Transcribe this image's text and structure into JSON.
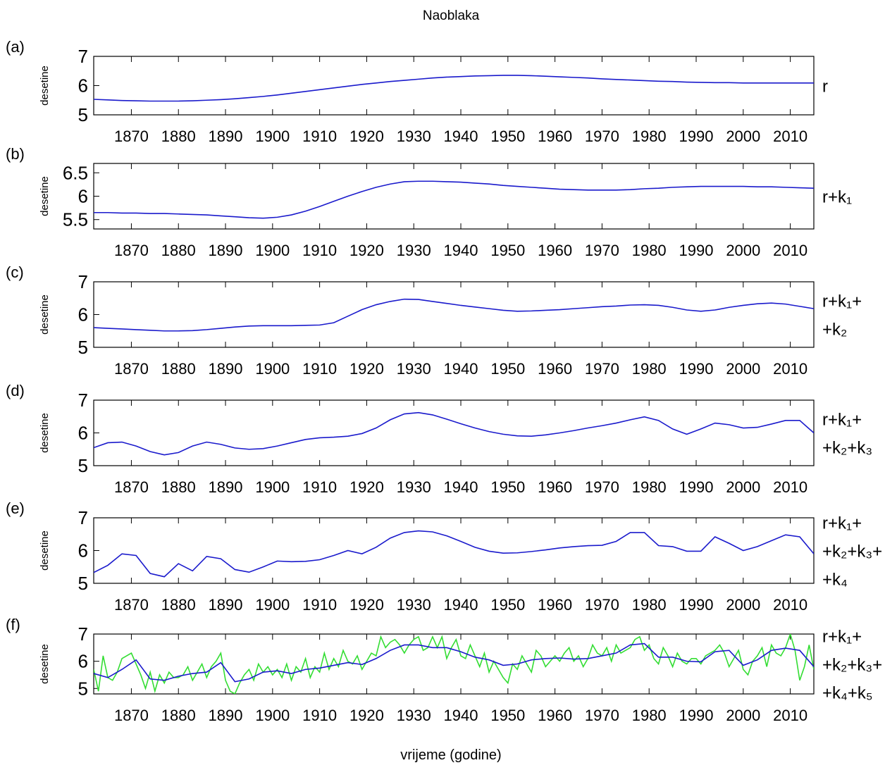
{
  "title": "Naoblaka",
  "xlabel": "vrijeme (godine)",
  "chart_data": [
    {
      "type": "line",
      "panel_label": "(a)",
      "ylabel": "desetine",
      "annotation": [
        "r"
      ],
      "x": [
        1862,
        1865,
        1868,
        1871,
        1874,
        1877,
        1880,
        1883,
        1886,
        1889,
        1892,
        1895,
        1898,
        1901,
        1904,
        1907,
        1910,
        1913,
        1916,
        1919,
        1922,
        1925,
        1928,
        1931,
        1934,
        1937,
        1940,
        1943,
        1946,
        1949,
        1952,
        1955,
        1958,
        1961,
        1964,
        1967,
        1970,
        1973,
        1976,
        1979,
        1982,
        1985,
        1988,
        1991,
        1994,
        1997,
        2000,
        2003,
        2006,
        2009,
        2012,
        2015
      ],
      "xlim": [
        1862,
        2015
      ],
      "xticks": [
        1870,
        1880,
        1890,
        1900,
        1910,
        1920,
        1930,
        1940,
        1950,
        1960,
        1970,
        1980,
        1990,
        2000,
        2010
      ],
      "ylim": [
        5,
        7
      ],
      "yticks": [
        5,
        6,
        7
      ],
      "series": [
        {
          "color": "#1a1acc",
          "values": [
            5.53,
            5.51,
            5.49,
            5.48,
            5.47,
            5.47,
            5.47,
            5.48,
            5.5,
            5.52,
            5.55,
            5.59,
            5.63,
            5.68,
            5.74,
            5.8,
            5.86,
            5.92,
            5.98,
            6.04,
            6.09,
            6.14,
            6.18,
            6.22,
            6.26,
            6.29,
            6.31,
            6.33,
            6.34,
            6.35,
            6.35,
            6.34,
            6.32,
            6.3,
            6.28,
            6.26,
            6.23,
            6.21,
            6.19,
            6.17,
            6.15,
            6.14,
            6.12,
            6.11,
            6.1,
            6.1,
            6.09,
            6.09,
            6.09,
            6.09,
            6.09,
            6.09
          ]
        }
      ]
    },
    {
      "type": "line",
      "panel_label": "(b)",
      "ylabel": "desetine",
      "annotation": [
        "r+k₁"
      ],
      "x": [
        1862,
        1865,
        1868,
        1871,
        1874,
        1877,
        1880,
        1883,
        1886,
        1889,
        1892,
        1895,
        1898,
        1901,
        1904,
        1907,
        1910,
        1913,
        1916,
        1919,
        1922,
        1925,
        1928,
        1931,
        1934,
        1937,
        1940,
        1943,
        1946,
        1949,
        1952,
        1955,
        1958,
        1961,
        1964,
        1967,
        1970,
        1973,
        1976,
        1979,
        1982,
        1985,
        1988,
        1991,
        1994,
        1997,
        2000,
        2003,
        2006,
        2009,
        2012,
        2015
      ],
      "xlim": [
        1862,
        2015
      ],
      "xticks": [
        1870,
        1880,
        1890,
        1900,
        1910,
        1920,
        1930,
        1940,
        1950,
        1960,
        1970,
        1980,
        1990,
        2000,
        2010
      ],
      "ylim": [
        5.3,
        6.7
      ],
      "yticks": [
        5.5,
        6,
        6.5
      ],
      "series": [
        {
          "color": "#1a1acc",
          "values": [
            5.65,
            5.65,
            5.64,
            5.64,
            5.63,
            5.63,
            5.62,
            5.61,
            5.6,
            5.58,
            5.56,
            5.54,
            5.53,
            5.55,
            5.6,
            5.68,
            5.78,
            5.89,
            6.0,
            6.1,
            6.19,
            6.26,
            6.31,
            6.32,
            6.32,
            6.31,
            6.3,
            6.28,
            6.26,
            6.23,
            6.21,
            6.19,
            6.17,
            6.15,
            6.14,
            6.13,
            6.13,
            6.13,
            6.14,
            6.16,
            6.17,
            6.19,
            6.2,
            6.21,
            6.21,
            6.21,
            6.21,
            6.2,
            6.2,
            6.19,
            6.18,
            6.17
          ]
        }
      ]
    },
    {
      "type": "line",
      "panel_label": "(c)",
      "ylabel": "desetine",
      "annotation": [
        "r+k₁+",
        "+k₂"
      ],
      "x": [
        1862,
        1865,
        1868,
        1871,
        1874,
        1877,
        1880,
        1883,
        1886,
        1889,
        1892,
        1895,
        1898,
        1901,
        1904,
        1907,
        1910,
        1913,
        1916,
        1919,
        1922,
        1925,
        1928,
        1931,
        1934,
        1937,
        1940,
        1943,
        1946,
        1949,
        1952,
        1955,
        1958,
        1961,
        1964,
        1967,
        1970,
        1973,
        1976,
        1979,
        1982,
        1985,
        1988,
        1991,
        1994,
        1997,
        2000,
        2003,
        2006,
        2009,
        2012,
        2015
      ],
      "xlim": [
        1862,
        2015
      ],
      "xticks": [
        1870,
        1880,
        1890,
        1900,
        1910,
        1920,
        1930,
        1940,
        1950,
        1960,
        1970,
        1980,
        1990,
        2000,
        2010
      ],
      "ylim": [
        5,
        7
      ],
      "yticks": [
        5,
        6,
        7
      ],
      "series": [
        {
          "color": "#1a1acc",
          "values": [
            5.6,
            5.58,
            5.56,
            5.54,
            5.52,
            5.5,
            5.5,
            5.51,
            5.54,
            5.58,
            5.62,
            5.65,
            5.66,
            5.66,
            5.66,
            5.67,
            5.68,
            5.75,
            5.95,
            6.15,
            6.3,
            6.4,
            6.47,
            6.46,
            6.4,
            6.34,
            6.28,
            6.23,
            6.18,
            6.13,
            6.1,
            6.11,
            6.13,
            6.15,
            6.18,
            6.21,
            6.24,
            6.26,
            6.29,
            6.3,
            6.28,
            6.22,
            6.14,
            6.1,
            6.14,
            6.22,
            6.28,
            6.33,
            6.35,
            6.32,
            6.25,
            6.18
          ]
        }
      ]
    },
    {
      "type": "line",
      "panel_label": "(d)",
      "ylabel": "desetine",
      "annotation": [
        "r+k₁+",
        "+k₂+k₃"
      ],
      "x": [
        1862,
        1865,
        1868,
        1871,
        1874,
        1877,
        1880,
        1883,
        1886,
        1889,
        1892,
        1895,
        1898,
        1901,
        1904,
        1907,
        1910,
        1913,
        1916,
        1919,
        1922,
        1925,
        1928,
        1931,
        1934,
        1937,
        1940,
        1943,
        1946,
        1949,
        1952,
        1955,
        1958,
        1961,
        1964,
        1967,
        1970,
        1973,
        1976,
        1979,
        1982,
        1985,
        1988,
        1991,
        1994,
        1997,
        2000,
        2003,
        2006,
        2009,
        2012,
        2015
      ],
      "xlim": [
        1862,
        2015
      ],
      "xticks": [
        1870,
        1880,
        1890,
        1900,
        1910,
        1920,
        1930,
        1940,
        1950,
        1960,
        1970,
        1980,
        1990,
        2000,
        2010
      ],
      "ylim": [
        5,
        7
      ],
      "yticks": [
        5,
        6,
        7
      ],
      "series": [
        {
          "color": "#1a1acc",
          "values": [
            5.55,
            5.7,
            5.72,
            5.6,
            5.43,
            5.33,
            5.4,
            5.6,
            5.72,
            5.65,
            5.54,
            5.5,
            5.52,
            5.6,
            5.7,
            5.8,
            5.85,
            5.87,
            5.9,
            5.98,
            6.15,
            6.4,
            6.58,
            6.62,
            6.55,
            6.42,
            6.28,
            6.15,
            6.04,
            5.96,
            5.91,
            5.9,
            5.94,
            6.0,
            6.07,
            6.15,
            6.22,
            6.3,
            6.4,
            6.49,
            6.38,
            6.12,
            5.96,
            6.12,
            6.3,
            6.25,
            6.15,
            6.17,
            6.27,
            6.38,
            6.38,
            6.0
          ]
        }
      ]
    },
    {
      "type": "line",
      "panel_label": "(e)",
      "ylabel": "desetine",
      "annotation": [
        "r+k₁+",
        "+k₂+k₃+",
        "+k₄"
      ],
      "x": [
        1862,
        1865,
        1868,
        1871,
        1874,
        1877,
        1880,
        1883,
        1886,
        1889,
        1892,
        1895,
        1898,
        1901,
        1904,
        1907,
        1910,
        1913,
        1916,
        1919,
        1922,
        1925,
        1928,
        1931,
        1934,
        1937,
        1940,
        1943,
        1946,
        1949,
        1952,
        1955,
        1958,
        1961,
        1964,
        1967,
        1970,
        1973,
        1976,
        1979,
        1982,
        1985,
        1988,
        1991,
        1994,
        1997,
        2000,
        2003,
        2006,
        2009,
        2012,
        2015
      ],
      "xlim": [
        1862,
        2015
      ],
      "xticks": [
        1870,
        1880,
        1890,
        1900,
        1910,
        1920,
        1930,
        1940,
        1950,
        1960,
        1970,
        1980,
        1990,
        2000,
        2010
      ],
      "ylim": [
        5,
        7
      ],
      "yticks": [
        5,
        6,
        7
      ],
      "series": [
        {
          "color": "#1a1acc",
          "values": [
            5.33,
            5.55,
            5.9,
            5.85,
            5.3,
            5.2,
            5.6,
            5.38,
            5.82,
            5.75,
            5.42,
            5.34,
            5.5,
            5.68,
            5.66,
            5.67,
            5.72,
            5.85,
            6.0,
            5.9,
            6.1,
            6.38,
            6.55,
            6.6,
            6.57,
            6.45,
            6.28,
            6.1,
            5.98,
            5.92,
            5.93,
            5.97,
            6.02,
            6.08,
            6.12,
            6.15,
            6.16,
            6.28,
            6.55,
            6.55,
            6.15,
            6.12,
            5.98,
            5.98,
            6.42,
            6.22,
            6.0,
            6.12,
            6.3,
            6.48,
            6.42,
            5.9
          ]
        }
      ]
    },
    {
      "type": "line",
      "panel_label": "(f)",
      "ylabel": "desetine",
      "annotation": [
        "r+k₁+",
        "+k₂+k₃+",
        "+k₄+k₅"
      ],
      "xlim": [
        1862,
        2015
      ],
      "xticks": [
        1870,
        1880,
        1890,
        1900,
        1910,
        1920,
        1930,
        1940,
        1950,
        1960,
        1970,
        1980,
        1990,
        2000,
        2010
      ],
      "ylim": [
        4.8,
        7
      ],
      "yticks": [
        5,
        6,
        7
      ],
      "series": [
        {
          "color": "#33dd33",
          "x": [
            1862,
            1863,
            1864,
            1865,
            1866,
            1867,
            1868,
            1869,
            1870,
            1871,
            1872,
            1873,
            1874,
            1875,
            1876,
            1877,
            1878,
            1879,
            1880,
            1881,
            1882,
            1883,
            1884,
            1885,
            1886,
            1887,
            1888,
            1889,
            1890,
            1891,
            1892,
            1893,
            1894,
            1895,
            1896,
            1897,
            1898,
            1899,
            1900,
            1901,
            1902,
            1903,
            1904,
            1905,
            1906,
            1907,
            1908,
            1909,
            1910,
            1911,
            1912,
            1913,
            1914,
            1915,
            1916,
            1917,
            1918,
            1919,
            1920,
            1921,
            1922,
            1923,
            1924,
            1925,
            1926,
            1927,
            1928,
            1929,
            1930,
            1931,
            1932,
            1933,
            1934,
            1935,
            1936,
            1937,
            1938,
            1939,
            1940,
            1941,
            1942,
            1943,
            1944,
            1945,
            1946,
            1947,
            1948,
            1949,
            1950,
            1951,
            1952,
            1953,
            1954,
            1955,
            1956,
            1957,
            1958,
            1959,
            1960,
            1961,
            1962,
            1963,
            1964,
            1965,
            1966,
            1967,
            1968,
            1969,
            1970,
            1971,
            1972,
            1973,
            1974,
            1975,
            1976,
            1977,
            1978,
            1979,
            1980,
            1981,
            1982,
            1983,
            1984,
            1985,
            1986,
            1987,
            1988,
            1989,
            1990,
            1991,
            1992,
            1993,
            1994,
            1995,
            1996,
            1997,
            1998,
            1999,
            2000,
            2001,
            2002,
            2003,
            2004,
            2005,
            2006,
            2007,
            2008,
            2009,
            2010,
            2011,
            2012,
            2013,
            2014,
            2015
          ],
          "values": [
            5.7,
            4.9,
            6.2,
            5.4,
            5.3,
            5.6,
            6.1,
            6.2,
            6.3,
            5.9,
            5.5,
            5.0,
            5.6,
            4.9,
            5.5,
            5.2,
            5.6,
            5.4,
            5.4,
            5.5,
            5.8,
            5.3,
            5.6,
            5.9,
            5.4,
            5.8,
            6.0,
            6.3,
            5.3,
            4.9,
            4.8,
            5.2,
            5.5,
            5.7,
            5.3,
            5.9,
            5.6,
            5.8,
            5.5,
            5.7,
            5.4,
            5.9,
            5.3,
            5.8,
            5.6,
            6.1,
            5.4,
            5.8,
            5.6,
            6.3,
            5.7,
            6.1,
            5.8,
            6.4,
            6.0,
            5.9,
            6.2,
            5.7,
            6.0,
            6.3,
            6.2,
            6.9,
            6.5,
            6.7,
            6.8,
            6.6,
            6.3,
            6.6,
            6.8,
            6.9,
            6.4,
            6.5,
            6.9,
            6.5,
            6.9,
            6.1,
            6.5,
            6.8,
            6.2,
            6.1,
            6.6,
            6.2,
            5.8,
            6.3,
            5.6,
            6.0,
            5.7,
            5.4,
            5.2,
            5.9,
            5.7,
            6.2,
            5.9,
            5.6,
            6.4,
            6.2,
            5.8,
            6.0,
            6.2,
            6.0,
            6.3,
            6.5,
            6.0,
            6.2,
            5.8,
            6.1,
            6.6,
            6.3,
            6.2,
            6.5,
            6.0,
            6.6,
            6.3,
            6.4,
            6.5,
            6.8,
            6.9,
            6.4,
            6.6,
            6.1,
            5.9,
            6.5,
            6.2,
            5.8,
            6.3,
            6.0,
            5.9,
            6.1,
            6.1,
            5.9,
            6.2,
            6.3,
            6.4,
            6.6,
            6.3,
            5.8,
            6.1,
            6.4,
            5.7,
            5.5,
            6.0,
            6.2,
            6.5,
            5.8,
            6.6,
            6.3,
            6.2,
            6.5,
            7.0,
            6.4,
            5.3,
            5.8,
            6.6,
            5.7
          ]
        },
        {
          "color": "#1a1acc",
          "x": [
            1862,
            1865,
            1868,
            1871,
            1874,
            1877,
            1880,
            1883,
            1886,
            1889,
            1892,
            1895,
            1898,
            1901,
            1904,
            1907,
            1910,
            1913,
            1916,
            1919,
            1922,
            1925,
            1928,
            1931,
            1934,
            1937,
            1940,
            1943,
            1946,
            1949,
            1952,
            1955,
            1958,
            1961,
            1964,
            1967,
            1970,
            1973,
            1976,
            1979,
            1982,
            1985,
            1988,
            1991,
            1994,
            1997,
            2000,
            2003,
            2006,
            2009,
            2012,
            2015
          ],
          "values": [
            5.55,
            5.4,
            5.7,
            6.05,
            5.35,
            5.3,
            5.45,
            5.55,
            5.6,
            5.95,
            5.25,
            5.35,
            5.6,
            5.65,
            5.55,
            5.7,
            5.75,
            5.85,
            5.95,
            5.88,
            6.1,
            6.4,
            6.6,
            6.6,
            6.5,
            6.5,
            6.35,
            6.15,
            6.05,
            5.85,
            5.9,
            6.05,
            6.1,
            6.12,
            6.08,
            6.1,
            6.2,
            6.3,
            6.6,
            6.65,
            6.15,
            6.15,
            6.0,
            5.98,
            6.35,
            6.4,
            5.85,
            6.05,
            6.4,
            6.48,
            6.4,
            5.8
          ]
        }
      ]
    }
  ]
}
